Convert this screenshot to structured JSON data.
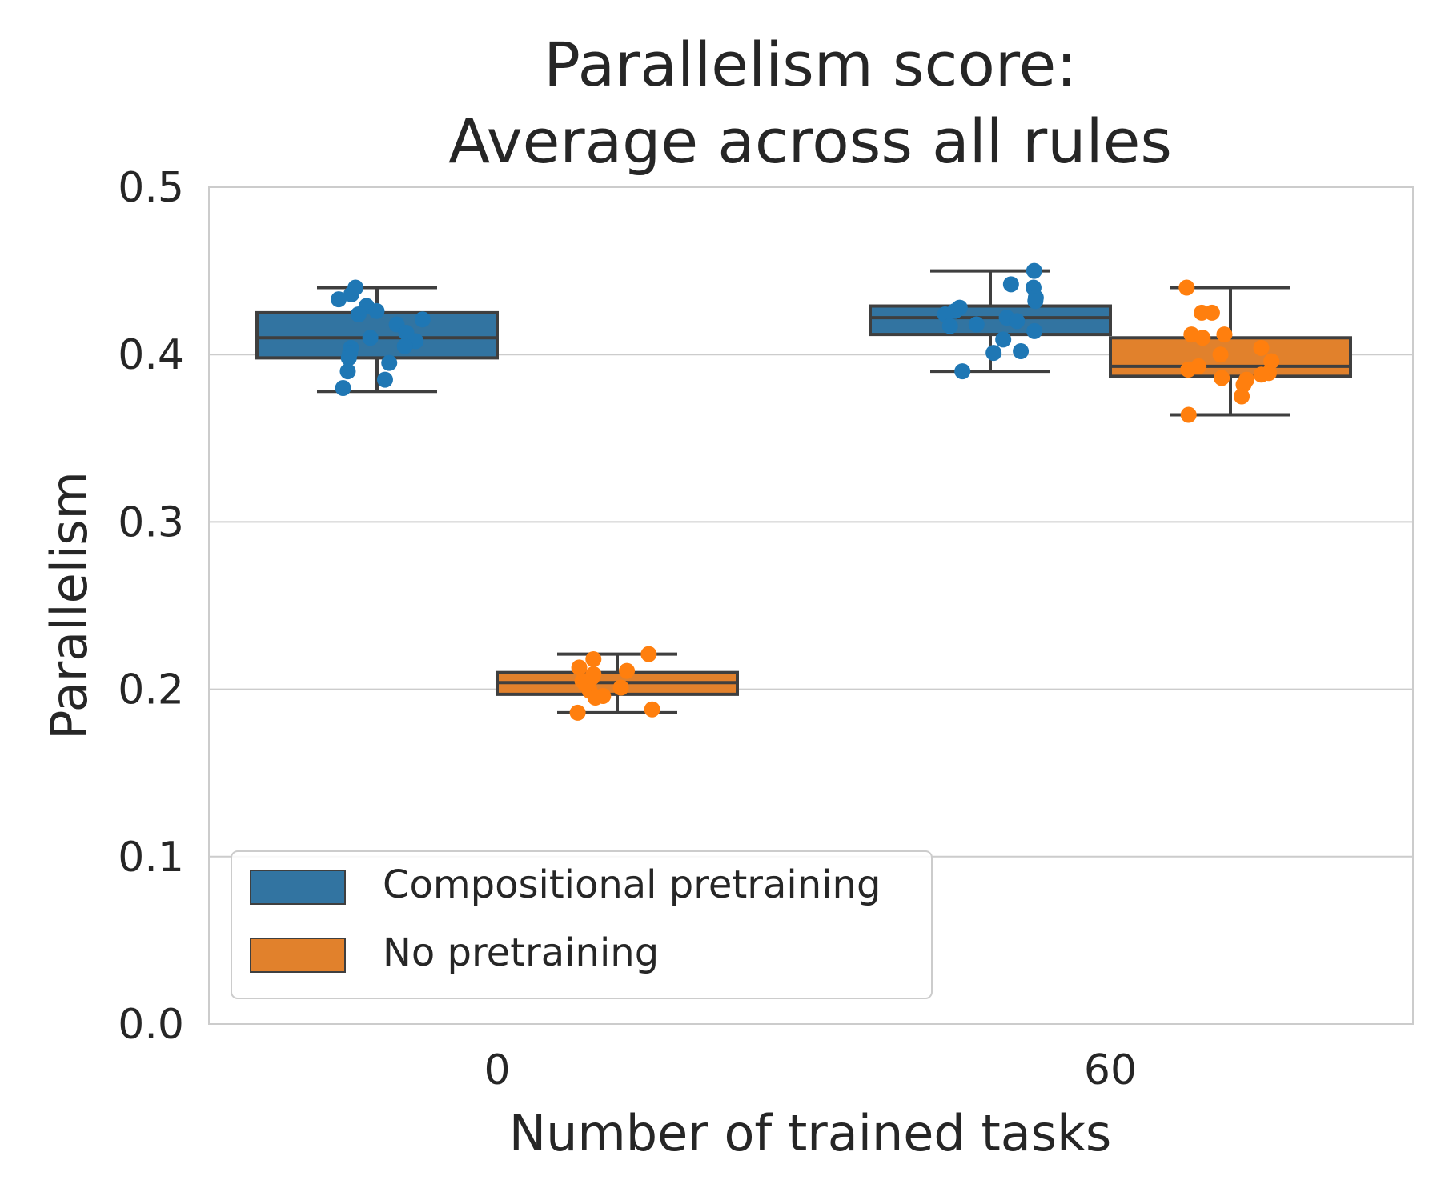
{
  "chart_data": {
    "type": "box",
    "title": "Parallelism score:\nAverage across all rules",
    "xlabel": "Number of trained tasks",
    "ylabel": "Parallelism",
    "categories": [
      "0",
      "60"
    ],
    "ylim": [
      0,
      0.5
    ],
    "yticks": [
      "0.0",
      "0.1",
      "0.2",
      "0.3",
      "0.4",
      "0.5"
    ],
    "grid": "horizontal",
    "legend_position": "lower-left",
    "series": [
      {
        "name": "Compositional pretraining",
        "color": "#3274a1",
        "point_color": "#1f77b4",
        "boxes": [
          {
            "category": "0",
            "whisker_low": 0.378,
            "q1": 0.398,
            "median": 0.41,
            "q3": 0.425,
            "whisker_high": 0.44
          },
          {
            "category": "60",
            "whisker_low": 0.39,
            "q1": 0.412,
            "median": 0.422,
            "q3": 0.429,
            "whisker_high": 0.45
          }
        ],
        "points": [
          [
            0.436,
            0.433,
            0.44,
            0.429,
            0.426,
            0.424,
            0.421,
            0.418,
            0.413,
            0.41,
            0.408,
            0.405,
            0.404,
            0.401,
            0.398,
            0.395,
            0.39,
            0.385,
            0.38
          ],
          [
            0.45,
            0.442,
            0.44,
            0.434,
            0.432,
            0.428,
            0.426,
            0.424,
            0.422,
            0.42,
            0.418,
            0.417,
            0.414,
            0.409,
            0.402,
            0.401,
            0.39
          ]
        ]
      },
      {
        "name": "No pretraining",
        "color": "#e1812c",
        "point_color": "#ff7f0e",
        "boxes": [
          {
            "category": "0",
            "whisker_low": 0.186,
            "q1": 0.197,
            "median": 0.204,
            "q3": 0.21,
            "whisker_high": 0.221
          },
          {
            "category": "60",
            "whisker_low": 0.364,
            "q1": 0.387,
            "median": 0.393,
            "q3": 0.41,
            "whisker_high": 0.44
          }
        ],
        "points": [
          [
            0.221,
            0.218,
            0.213,
            0.211,
            0.209,
            0.207,
            0.205,
            0.203,
            0.201,
            0.199,
            0.196,
            0.195,
            0.188,
            0.186
          ],
          [
            0.44,
            0.425,
            0.425,
            0.412,
            0.412,
            0.41,
            0.404,
            0.4,
            0.396,
            0.393,
            0.391,
            0.389,
            0.388,
            0.386,
            0.385,
            0.382,
            0.375,
            0.364
          ]
        ]
      }
    ]
  }
}
